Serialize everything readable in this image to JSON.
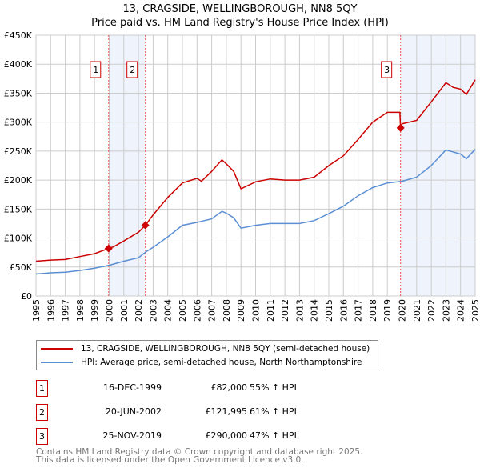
{
  "chart_data": {
    "type": "line",
    "title": "13, CRAGSIDE, WELLINGBOROUGH, NN8 5QY",
    "subtitle": "Price paid vs. HM Land Registry's House Price Index (HPI)",
    "xlim": [
      1995,
      2025
    ],
    "ylim": [
      0,
      450000
    ],
    "x_ticks": [
      "1995",
      "1996",
      "1997",
      "1998",
      "1999",
      "2000",
      "2001",
      "2002",
      "2003",
      "2004",
      "2005",
      "2006",
      "2007",
      "2008",
      "2009",
      "2010",
      "2011",
      "2012",
      "2013",
      "2014",
      "2015",
      "2016",
      "2017",
      "2018",
      "2019",
      "2020",
      "2021",
      "2022",
      "2023",
      "2024",
      "2025"
    ],
    "y_ticks": [
      {
        "v": 0,
        "label": "£0"
      },
      {
        "v": 50000,
        "label": "£50K"
      },
      {
        "v": 100000,
        "label": "£100K"
      },
      {
        "v": 150000,
        "label": "£150K"
      },
      {
        "v": 200000,
        "label": "£200K"
      },
      {
        "v": 250000,
        "label": "£250K"
      },
      {
        "v": 300000,
        "label": "£300K"
      },
      {
        "v": 350000,
        "label": "£350K"
      },
      {
        "v": 400000,
        "label": "£400K"
      },
      {
        "v": 450000,
        "label": "£450K"
      }
    ],
    "grid": true,
    "series": [
      {
        "name": "13, CRAGSIDE, WELLINGBOROUGH, NN8 5QY (semi-detached house)",
        "color": "#cc0000",
        "x": [
          1995,
          1996,
          1997,
          1998,
          1999,
          1999.96,
          2000.3,
          2001,
          2002,
          2002.47,
          2003,
          2004,
          2005,
          2006,
          2006.3,
          2007,
          2007.7,
          2008,
          2008.5,
          2009,
          2010,
          2011,
          2012,
          2013,
          2014,
          2015,
          2016,
          2017,
          2018,
          2019,
          2019.85,
          2019.9,
          2020,
          2021,
          2022,
          2023,
          2023.5,
          2024,
          2024.4,
          2025
        ],
        "y": [
          60000,
          62000,
          63000,
          68000,
          73000,
          82000,
          85000,
          95000,
          110000,
          121995,
          140000,
          170000,
          195000,
          203000,
          198000,
          215000,
          235000,
          228000,
          215000,
          185000,
          197000,
          202000,
          200000,
          200000,
          205000,
          225000,
          242000,
          270000,
          300000,
          317000,
          317000,
          290000,
          297000,
          303000,
          335000,
          368000,
          360000,
          357000,
          348000,
          373000
        ]
      },
      {
        "name": "HPI: Average price, semi-detached house, North Northamptonshire",
        "color": "#5b8fd4",
        "x": [
          1995,
          1996,
          1997,
          1998,
          1999,
          2000,
          2001,
          2002,
          2002.5,
          2003,
          2004,
          2005,
          2006,
          2007,
          2007.7,
          2008,
          2008.5,
          2009,
          2010,
          2011,
          2012,
          2013,
          2014,
          2015,
          2016,
          2017,
          2018,
          2019,
          2020,
          2021,
          2022,
          2023,
          2024,
          2024.4,
          2025
        ],
        "y": [
          38000,
          40000,
          41000,
          44000,
          48000,
          53000,
          60000,
          66000,
          76000,
          84000,
          102000,
          122000,
          127000,
          133000,
          146000,
          143000,
          135000,
          117000,
          122000,
          125000,
          125000,
          125000,
          130000,
          142000,
          155000,
          173000,
          187000,
          195000,
          198000,
          205000,
          225000,
          252000,
          245000,
          237000,
          253000
        ]
      }
    ],
    "sales": [
      {
        "num": "1",
        "x": 1999.96,
        "y": 82000,
        "date": "16-DEC-1999",
        "price": "£82,000",
        "hpi": "55% ↑ HPI"
      },
      {
        "num": "2",
        "x": 2002.47,
        "y": 121995,
        "date": "20-JUN-2002",
        "price": "£121,995",
        "hpi": "61% ↑ HPI"
      },
      {
        "num": "3",
        "x": 2019.9,
        "y": 290000,
        "date": "25-NOV-2019",
        "price": "£290,000",
        "hpi": "47% ↑ HPI"
      }
    ],
    "shaded": [
      [
        1999.96,
        2002.47
      ],
      [
        2019.9,
        2025
      ]
    ],
    "legend_position": "below"
  },
  "footer": [
    "Contains HM Land Registry data © Crown copyright and database right 2025.",
    "This data is licensed under the Open Government Licence v3.0."
  ]
}
